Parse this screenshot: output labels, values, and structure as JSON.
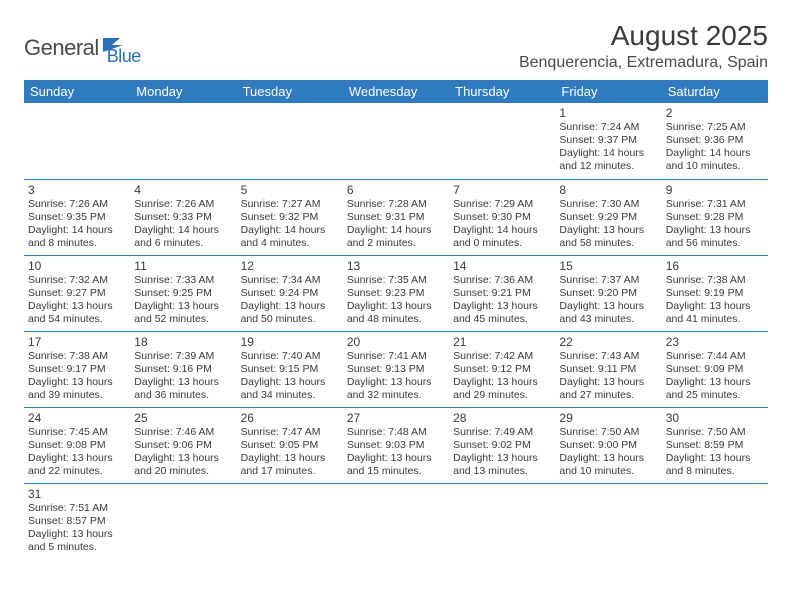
{
  "logo": {
    "dark": "General",
    "blue": "Blue"
  },
  "title": "August 2025",
  "location": "Benquerencia, Extremadura, Spain",
  "colors": {
    "header_bg": "#2f7bc1",
    "header_text": "#ffffff",
    "divider": "#2f7bc1",
    "body_text": "#3a3a3a",
    "logo_dark": "#4a4a4a",
    "logo_blue": "#2970b8",
    "page_bg": "#ffffff"
  },
  "typography": {
    "title_fontsize": 28,
    "location_fontsize": 16,
    "dow_fontsize": 13,
    "daynum_fontsize": 12,
    "daytext_fontsize": 10.5
  },
  "dow": [
    "Sunday",
    "Monday",
    "Tuesday",
    "Wednesday",
    "Thursday",
    "Friday",
    "Saturday"
  ],
  "weeks": [
    [
      null,
      null,
      null,
      null,
      null,
      {
        "n": "1",
        "sr": "7:24 AM",
        "ss": "9:37 PM",
        "dl": "14 hours and 12 minutes."
      },
      {
        "n": "2",
        "sr": "7:25 AM",
        "ss": "9:36 PM",
        "dl": "14 hours and 10 minutes."
      }
    ],
    [
      {
        "n": "3",
        "sr": "7:26 AM",
        "ss": "9:35 PM",
        "dl": "14 hours and 8 minutes."
      },
      {
        "n": "4",
        "sr": "7:26 AM",
        "ss": "9:33 PM",
        "dl": "14 hours and 6 minutes."
      },
      {
        "n": "5",
        "sr": "7:27 AM",
        "ss": "9:32 PM",
        "dl": "14 hours and 4 minutes."
      },
      {
        "n": "6",
        "sr": "7:28 AM",
        "ss": "9:31 PM",
        "dl": "14 hours and 2 minutes."
      },
      {
        "n": "7",
        "sr": "7:29 AM",
        "ss": "9:30 PM",
        "dl": "14 hours and 0 minutes."
      },
      {
        "n": "8",
        "sr": "7:30 AM",
        "ss": "9:29 PM",
        "dl": "13 hours and 58 minutes."
      },
      {
        "n": "9",
        "sr": "7:31 AM",
        "ss": "9:28 PM",
        "dl": "13 hours and 56 minutes."
      }
    ],
    [
      {
        "n": "10",
        "sr": "7:32 AM",
        "ss": "9:27 PM",
        "dl": "13 hours and 54 minutes."
      },
      {
        "n": "11",
        "sr": "7:33 AM",
        "ss": "9:25 PM",
        "dl": "13 hours and 52 minutes."
      },
      {
        "n": "12",
        "sr": "7:34 AM",
        "ss": "9:24 PM",
        "dl": "13 hours and 50 minutes."
      },
      {
        "n": "13",
        "sr": "7:35 AM",
        "ss": "9:23 PM",
        "dl": "13 hours and 48 minutes."
      },
      {
        "n": "14",
        "sr": "7:36 AM",
        "ss": "9:21 PM",
        "dl": "13 hours and 45 minutes."
      },
      {
        "n": "15",
        "sr": "7:37 AM",
        "ss": "9:20 PM",
        "dl": "13 hours and 43 minutes."
      },
      {
        "n": "16",
        "sr": "7:38 AM",
        "ss": "9:19 PM",
        "dl": "13 hours and 41 minutes."
      }
    ],
    [
      {
        "n": "17",
        "sr": "7:38 AM",
        "ss": "9:17 PM",
        "dl": "13 hours and 39 minutes."
      },
      {
        "n": "18",
        "sr": "7:39 AM",
        "ss": "9:16 PM",
        "dl": "13 hours and 36 minutes."
      },
      {
        "n": "19",
        "sr": "7:40 AM",
        "ss": "9:15 PM",
        "dl": "13 hours and 34 minutes."
      },
      {
        "n": "20",
        "sr": "7:41 AM",
        "ss": "9:13 PM",
        "dl": "13 hours and 32 minutes."
      },
      {
        "n": "21",
        "sr": "7:42 AM",
        "ss": "9:12 PM",
        "dl": "13 hours and 29 minutes."
      },
      {
        "n": "22",
        "sr": "7:43 AM",
        "ss": "9:11 PM",
        "dl": "13 hours and 27 minutes."
      },
      {
        "n": "23",
        "sr": "7:44 AM",
        "ss": "9:09 PM",
        "dl": "13 hours and 25 minutes."
      }
    ],
    [
      {
        "n": "24",
        "sr": "7:45 AM",
        "ss": "9:08 PM",
        "dl": "13 hours and 22 minutes."
      },
      {
        "n": "25",
        "sr": "7:46 AM",
        "ss": "9:06 PM",
        "dl": "13 hours and 20 minutes."
      },
      {
        "n": "26",
        "sr": "7:47 AM",
        "ss": "9:05 PM",
        "dl": "13 hours and 17 minutes."
      },
      {
        "n": "27",
        "sr": "7:48 AM",
        "ss": "9:03 PM",
        "dl": "13 hours and 15 minutes."
      },
      {
        "n": "28",
        "sr": "7:49 AM",
        "ss": "9:02 PM",
        "dl": "13 hours and 13 minutes."
      },
      {
        "n": "29",
        "sr": "7:50 AM",
        "ss": "9:00 PM",
        "dl": "13 hours and 10 minutes."
      },
      {
        "n": "30",
        "sr": "7:50 AM",
        "ss": "8:59 PM",
        "dl": "13 hours and 8 minutes."
      }
    ],
    [
      {
        "n": "31",
        "sr": "7:51 AM",
        "ss": "8:57 PM",
        "dl": "13 hours and 5 minutes."
      },
      null,
      null,
      null,
      null,
      null,
      null
    ]
  ]
}
